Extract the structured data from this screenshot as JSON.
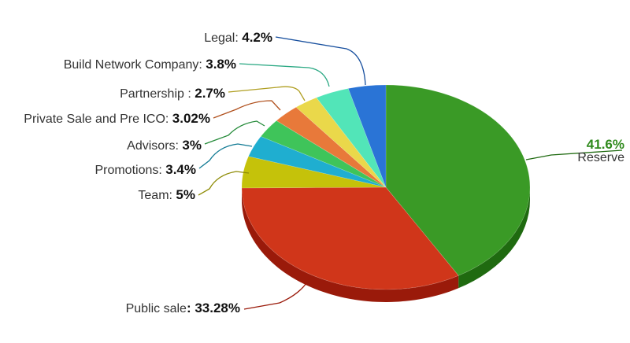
{
  "chart_data": {
    "type": "pie",
    "title": "",
    "legend": "none",
    "slices": [
      {
        "label": "Reserve",
        "value_text": "41.6%",
        "value": 41.6,
        "color": "#3a9a26",
        "side_color": "#1f6a10"
      },
      {
        "label": "Public sale",
        "value_text": "33.28%",
        "value": 33.28,
        "color": "#d0361a",
        "side_color": "#9a1a0a"
      },
      {
        "label": "Team",
        "value_text": "5%",
        "value": 5,
        "color": "#c5c20a",
        "side_color": "#8e8b05"
      },
      {
        "label": "Promotions",
        "value_text": "3.4%",
        "value": 3.4,
        "color": "#1faed0",
        "side_color": "#117a94"
      },
      {
        "label": "Advisors",
        "value_text": "3%",
        "value": 3,
        "color": "#3fc45a",
        "side_color": "#238a38"
      },
      {
        "label": "Private Sale and Pre ICO",
        "value_text": "3.02%",
        "value": 3.02,
        "color": "#e8793a",
        "side_color": "#b0501d"
      },
      {
        "label": "Partnership",
        "value_text": "2.7%",
        "value": 2.7,
        "color": "#ead84a",
        "side_color": "#b09f22"
      },
      {
        "label": "Build Network Company",
        "value_text": "3.8%",
        "value": 3.8,
        "color": "#52e5b8",
        "side_color": "#2aa883"
      },
      {
        "label": "Legal",
        "value_text": "4.2%",
        "value": 4.2,
        "color": "#2a74d6",
        "side_color": "#174f9e"
      }
    ]
  }
}
